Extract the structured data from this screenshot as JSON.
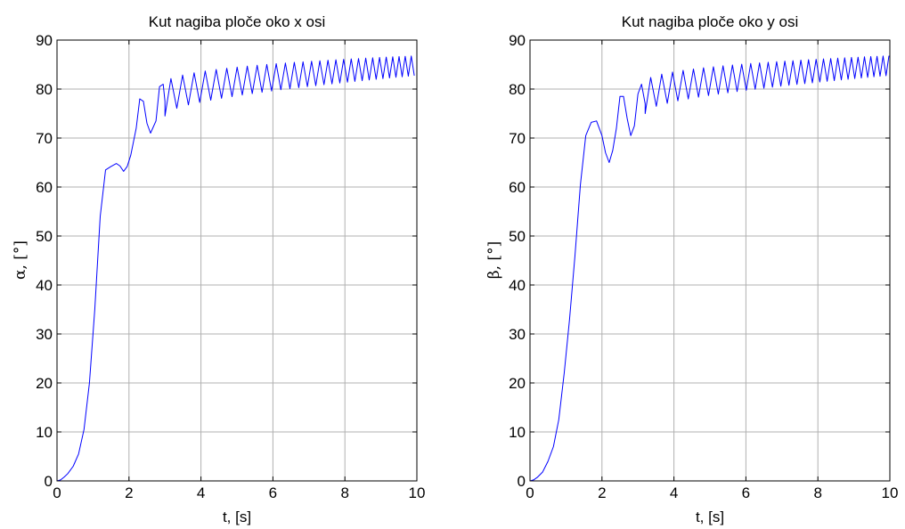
{
  "figure": {
    "background": "#ffffff",
    "line_color": "#0000ff",
    "grid_color": "#b0b0b0"
  },
  "chart_data": [
    {
      "type": "line",
      "title": "Kut nagiba ploče oko x osi",
      "xlabel": "t, [s]",
      "ylabel": "α, [°]",
      "xlim": [
        0,
        10
      ],
      "ylim": [
        0,
        90
      ],
      "xticks": [
        0,
        2,
        4,
        6,
        8,
        10
      ],
      "yticks": [
        0,
        10,
        20,
        30,
        40,
        50,
        60,
        70,
        80,
        90
      ],
      "grid": true,
      "series": [
        {
          "x": [
            0,
            0.1,
            0.2,
            0.3,
            0.45,
            0.6,
            0.75,
            0.9,
            1.05,
            1.2,
            1.35,
            1.5,
            1.65,
            1.75,
            1.85,
            1.95,
            2.05,
            2.2,
            2.3,
            2.4,
            2.5,
            2.6,
            2.75,
            2.85,
            2.95,
            3.0
          ],
          "y": [
            0,
            0.2,
            0.8,
            1.5,
            3.0,
            5.5,
            10.5,
            20,
            35,
            54,
            63.5,
            64.2,
            64.8,
            64.3,
            63.2,
            64.2,
            66.5,
            72,
            78,
            77.5,
            73,
            71,
            73.5,
            80.5,
            81,
            77.5
          ],
          "osc": {
            "t_start": 3.0,
            "t_end": 10.0,
            "period_start": 0.33,
            "period_end": 0.16,
            "mean_start": 77.8,
            "mean_end": 84.8,
            "amp_start": 3.3,
            "amp_end": 2.0
          }
        }
      ]
    },
    {
      "type": "line",
      "title": "Kut nagiba ploče oko y osi",
      "xlabel": "t, [s]",
      "ylabel": "β, [°]",
      "xlim": [
        0,
        10
      ],
      "ylim": [
        0,
        90
      ],
      "xticks": [
        0,
        2,
        4,
        6,
        8,
        10
      ],
      "yticks": [
        0,
        10,
        20,
        30,
        40,
        50,
        60,
        70,
        80,
        90
      ],
      "grid": true,
      "series": [
        {
          "x": [
            0,
            0.1,
            0.2,
            0.35,
            0.5,
            0.65,
            0.8,
            0.95,
            1.1,
            1.25,
            1.4,
            1.55,
            1.7,
            1.85,
            2.0,
            2.1,
            2.2,
            2.3,
            2.4,
            2.5,
            2.6,
            2.7,
            2.8,
            2.9,
            3.0,
            3.1,
            3.2
          ],
          "y": [
            0,
            0.2,
            0.7,
            1.8,
            4.0,
            7.0,
            12.5,
            22,
            33,
            46,
            60.5,
            70.5,
            73.2,
            73.5,
            70.5,
            67,
            65,
            67.5,
            72,
            78.5,
            78.5,
            74,
            70.5,
            72.5,
            79,
            81,
            77
          ],
          "osc": {
            "t_start": 3.2,
            "t_end": 10.0,
            "period_start": 0.31,
            "period_end": 0.16,
            "mean_start": 78.2,
            "mean_end": 84.8,
            "amp_start": 3.2,
            "amp_end": 2.0
          }
        }
      ]
    }
  ]
}
